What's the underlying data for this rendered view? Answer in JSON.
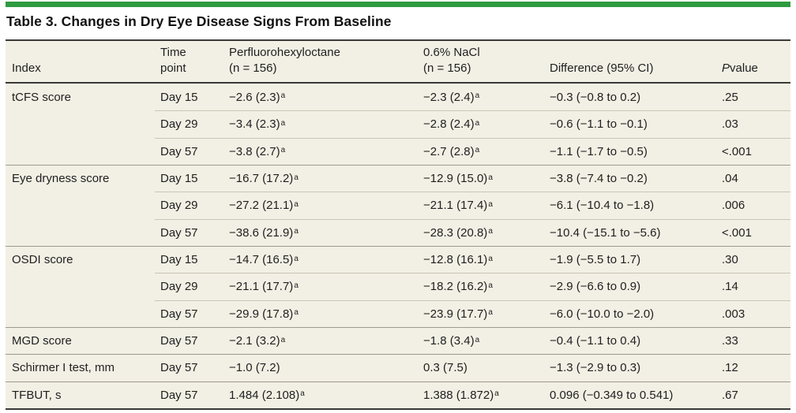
{
  "title": "Table 3. Changes in Dry Eye Disease Signs From Baseline",
  "accent_color": "#2e9b41",
  "table": {
    "header": {
      "index": "Index",
      "time_point": "Time\npoint",
      "perfluorohexyloctane": "Perfluorohexyloctane\n(n = 156)",
      "nacl": "0.6% NaCl\n(n = 156)",
      "difference": "Difference (95% CI)",
      "p_value": {
        "italic_part": "P",
        "rest": " value"
      }
    },
    "footnote_marker": "a",
    "groups": [
      {
        "index": "tCFS score",
        "rows": [
          {
            "time_point": "Day 15",
            "pfho": "−2.6 (2.3)",
            "pfho_sup": true,
            "nacl": "−2.3 (2.4)",
            "nacl_sup": true,
            "difference": "−0.3 (−0.8 to 0.2)",
            "p_value": ".25"
          },
          {
            "time_point": "Day 29",
            "pfho": "−3.4 (2.3)",
            "pfho_sup": true,
            "nacl": "−2.8 (2.4)",
            "nacl_sup": true,
            "difference": "−0.6 (−1.1 to −0.1)",
            "p_value": ".03"
          },
          {
            "time_point": "Day 57",
            "pfho": "−3.8 (2.7)",
            "pfho_sup": true,
            "nacl": "−2.7 (2.8)",
            "nacl_sup": true,
            "difference": "−1.1 (−1.7 to −0.5)",
            "p_value": "<.001"
          }
        ]
      },
      {
        "index": "Eye dryness score",
        "rows": [
          {
            "time_point": "Day 15",
            "pfho": "−16.7 (17.2)",
            "pfho_sup": true,
            "nacl": "−12.9 (15.0)",
            "nacl_sup": true,
            "difference": "−3.8 (−7.4 to −0.2)",
            "p_value": ".04"
          },
          {
            "time_point": "Day 29",
            "pfho": "−27.2 (21.1)",
            "pfho_sup": true,
            "nacl": "−21.1 (17.4)",
            "nacl_sup": true,
            "difference": "−6.1 (−10.4 to −1.8)",
            "p_value": ".006"
          },
          {
            "time_point": "Day 57",
            "pfho": "−38.6 (21.9)",
            "pfho_sup": true,
            "nacl": "−28.3 (20.8)",
            "nacl_sup": true,
            "difference": "−10.4 (−15.1 to −5.6)",
            "p_value": "<.001"
          }
        ]
      },
      {
        "index": "OSDI score",
        "rows": [
          {
            "time_point": "Day 15",
            "pfho": "−14.7 (16.5)",
            "pfho_sup": true,
            "nacl": "−12.8 (16.1)",
            "nacl_sup": true,
            "difference": "−1.9 (−5.5 to 1.7)",
            "p_value": ".30"
          },
          {
            "time_point": "Day 29",
            "pfho": "−21.1 (17.7)",
            "pfho_sup": true,
            "nacl": "−18.2 (16.2)",
            "nacl_sup": true,
            "difference": "−2.9 (−6.6 to 0.9)",
            "p_value": ".14"
          },
          {
            "time_point": "Day 57",
            "pfho": "−29.9 (17.8)",
            "pfho_sup": true,
            "nacl": "−23.9 (17.7)",
            "nacl_sup": true,
            "difference": "−6.0 (−10.0 to −2.0)",
            "p_value": ".003"
          }
        ]
      },
      {
        "index": "MGD score",
        "rows": [
          {
            "time_point": "Day 57",
            "pfho": "−2.1 (3.2)",
            "pfho_sup": true,
            "nacl": "−1.8 (3.4)",
            "nacl_sup": true,
            "difference": "−0.4 (−1.1 to 0.4)",
            "p_value": ".33"
          }
        ]
      },
      {
        "index": "Schirmer I test, mm",
        "rows": [
          {
            "time_point": "Day 57",
            "pfho": "−1.0 (7.2)",
            "pfho_sup": false,
            "nacl": "0.3 (7.5)",
            "nacl_sup": false,
            "difference": "−1.3 (−2.9 to 0.3)",
            "p_value": ".12"
          }
        ]
      },
      {
        "index": "TFBUT, s",
        "rows": [
          {
            "time_point": "Day 57",
            "pfho": "1.484 (2.108)",
            "pfho_sup": true,
            "nacl": "1.388 (1.872)",
            "nacl_sup": true,
            "difference": "0.096 (−0.349 to 0.541)",
            "p_value": ".67"
          }
        ]
      }
    ]
  }
}
